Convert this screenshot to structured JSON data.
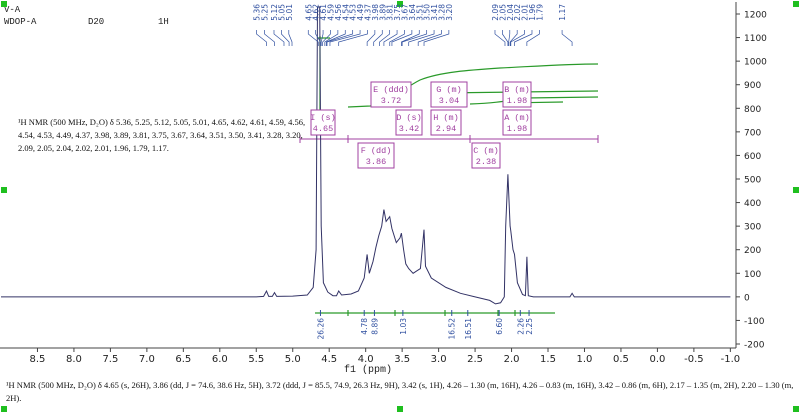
{
  "chart_data": {
    "type": "line",
    "header": [
      "V-A",
      "WDOP-A",
      "D20",
      "1H"
    ],
    "xlabel": "f1 (ppm)",
    "x": [
      9.0,
      5.5,
      5.4,
      5.36,
      5.33,
      5.28,
      5.25,
      5.22,
      5.0,
      4.8,
      4.72,
      4.68,
      4.66,
      4.63,
      4.61,
      4.58,
      4.52,
      4.45,
      4.4,
      4.37,
      4.33,
      4.2,
      4.1,
      4.02,
      3.98,
      3.95,
      3.9,
      3.86,
      3.82,
      3.78,
      3.75,
      3.72,
      3.67,
      3.64,
      3.58,
      3.53,
      3.51,
      3.48,
      3.45,
      3.41,
      3.35,
      3.3,
      3.25,
      3.22,
      3.2,
      3.18,
      3.1,
      2.9,
      2.7,
      2.5,
      2.3,
      2.22,
      2.15,
      2.1,
      2.08,
      2.05,
      2.04,
      2.02,
      2.01,
      1.98,
      1.96,
      1.92,
      1.85,
      1.81,
      1.79,
      1.77,
      1.7,
      1.2,
      1.17,
      1.14,
      -1.0
    ],
    "values": [
      0,
      0,
      2,
      25,
      2,
      2,
      18,
      2,
      3,
      8,
      40,
      200,
      1230,
      1230,
      300,
      60,
      20,
      5,
      5,
      25,
      8,
      12,
      25,
      80,
      180,
      100,
      150,
      210,
      260,
      300,
      370,
      320,
      340,
      290,
      230,
      250,
      270,
      200,
      140,
      120,
      100,
      110,
      120,
      220,
      285,
      130,
      80,
      40,
      15,
      0,
      -15,
      -30,
      -25,
      0,
      300,
      520,
      450,
      300,
      280,
      200,
      180,
      60,
      10,
      5,
      170,
      5,
      0,
      0,
      15,
      0,
      0
    ],
    "color": "#333366",
    "xlim": [
      9.0,
      -1.05
    ],
    "ylim": [
      -200,
      1200
    ],
    "xticks": [
      8.5,
      {
        "value": 8,
        "label": "8.0"
      },
      7.5,
      {
        "value": 7,
        "label": "7.0"
      },
      6.5,
      {
        "value": 6,
        "label": "6.0"
      },
      5.5,
      {
        "value": 5,
        "label": "5.0"
      },
      4.5,
      {
        "value": 4,
        "label": "4.0"
      },
      3.5,
      {
        "value": 3,
        "label": "3.0"
      },
      2.5,
      {
        "value": 2,
        "label": "2.0"
      },
      1.5,
      {
        "value": 1,
        "label": "1.0"
      },
      0.5,
      {
        "value": 0,
        "label": "0.0"
      },
      -0.5,
      {
        "value": -1,
        "label": "-1.0"
      }
    ],
    "yticks": [
      1200,
      1100,
      1000,
      900,
      800,
      700,
      600,
      500,
      400,
      300,
      200,
      100,
      0,
      -100,
      -200
    ],
    "peak_labels": [
      5.36,
      5.25,
      5.12,
      5.05,
      5.01,
      4.65,
      4.62,
      4.61,
      4.59,
      4.56,
      4.54,
      4.53,
      4.49,
      4.37,
      3.98,
      3.89,
      3.81,
      3.75,
      3.67,
      3.64,
      3.51,
      {
        "value": 3.5,
        "label": "3.50"
      },
      3.41,
      3.28,
      {
        "value": 3.2,
        "label": "3.20"
      },
      2.09,
      2.05,
      2.04,
      2.02,
      2.01,
      1.96,
      1.79,
      1.17
    ],
    "integrals": {
      "x": [
        4.62,
        4.02,
        3.88,
        3.49,
        2.82,
        2.6,
        2.17,
        1.88,
        1.76
      ],
      "values": [
        26.26,
        4.78,
        8.89,
        1.03,
        16.52,
        16.51,
        6.6,
        2.26,
        2.25
      ],
      "value_labels": [
        "26.26",
        "4.78",
        "8.89",
        "1.03",
        "16.52",
        "16.51",
        "6.60",
        "2.26",
        "2.25"
      ]
    },
    "multiplets": [
      {
        "label": "I (s)",
        "shift": 4.65
      },
      {
        "label": "E (ddd)",
        "shift": 3.72
      },
      {
        "label": "G (m)",
        "shift": 3.04
      },
      {
        "label": "B (m)",
        "shift": 1.98
      },
      {
        "label": "D (s)",
        "shift": 3.42
      },
      {
        "label": "H (m)",
        "shift": 2.94
      },
      {
        "label": "A (m)",
        "shift": 1.98
      },
      {
        "label": "F (dd)",
        "shift": 3.86
      },
      {
        "label": "C (m)",
        "shift": 2.38
      }
    ],
    "text_left": "¹H NMR (500 MHz, D₂O) δ 5.36, 5.25, 5.12, 5.05, 5.01, 4.65, 4.62, 4.61, 4.59, 4.56, 4.54, 4.53, 4.49, 4.37, 3.98, 3.89, 3.81, 3.75, 3.67, 3.64, 3.51, 3.50, 3.41, 3.28, 3.20, 2.09, 2.05, 2.04, 2.02, 2.01, 1.96, 1.79, 1.17.",
    "text_bottom": "¹H NMR (500 MHz, D₂O) δ 4.65 (s, 26H), 3.86 (dd, J = 74.6, 38.6 Hz, 5H), 3.72 (ddd, J = 85.5, 74.9, 26.3 Hz, 9H), 3.42 (s, 1H), 4.26 – 1.30 (m, 16H), 4.26 – 0.83 (m, 16H), 3.42 – 0.86 (m, 6H), 2.17 – 1.35 (m, 2H), 2.20 – 1.30 (m, 2H)."
  }
}
